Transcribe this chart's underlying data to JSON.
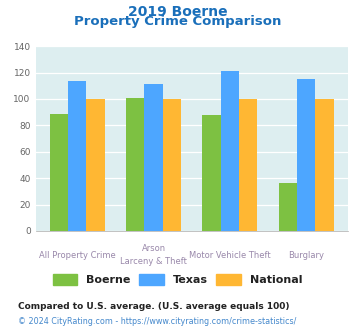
{
  "title_line1": "2019 Boerne",
  "title_line2": "Property Crime Comparison",
  "cat_labels_line1": [
    "All Property Crime",
    "Arson",
    "Motor Vehicle Theft",
    "Burglary"
  ],
  "cat_labels_line2": [
    "",
    "Larceny & Theft",
    "",
    ""
  ],
  "boerne": [
    89,
    101,
    88,
    36
  ],
  "texas": [
    114,
    111,
    121,
    115
  ],
  "national": [
    100,
    100,
    100,
    100
  ],
  "color_boerne": "#7dc142",
  "color_texas": "#4da6ff",
  "color_national": "#ffb733",
  "ylim": [
    0,
    140
  ],
  "yticks": [
    0,
    20,
    40,
    60,
    80,
    100,
    120,
    140
  ],
  "bg_color": "#ddeef0",
  "title_color": "#1a6fba",
  "xlabel_color": "#9988aa",
  "footnote1": "Compared to U.S. average. (U.S. average equals 100)",
  "footnote2": "© 2024 CityRating.com - https://www.cityrating.com/crime-statistics/",
  "footnote1_color": "#222222",
  "footnote2_color": "#4488cc"
}
